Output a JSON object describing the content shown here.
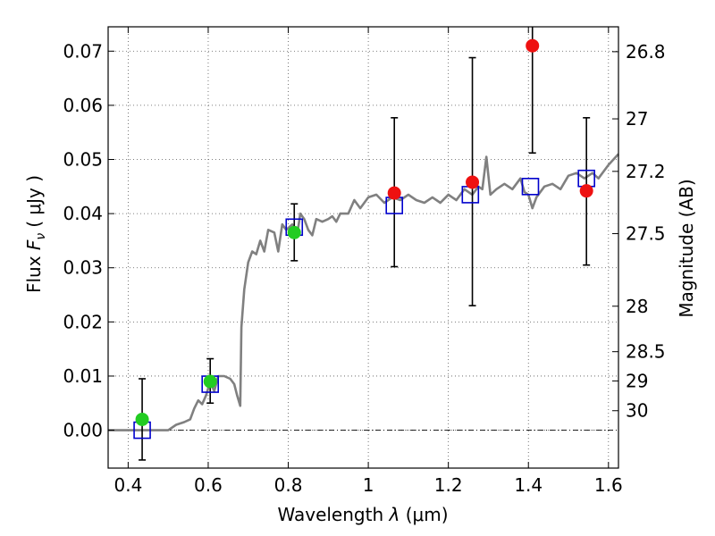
{
  "chart_data": {
    "type": "scatter",
    "title": "",
    "xlabel_parts": {
      "text": "Wavelength",
      "symbol": "λ",
      "unit": "(μm)"
    },
    "ylabel_parts": {
      "text": "Flux",
      "symbol": "F",
      "subscript": "ν",
      "unit": "( μJy )"
    },
    "y2label": "Magnitude (AB)",
    "xlim": [
      0.35,
      1.625
    ],
    "ylim": [
      -0.007,
      0.0745
    ],
    "grid": true,
    "x_ticks": [
      0.4,
      0.6,
      0.8,
      1.0,
      1.2,
      1.4,
      1.6
    ],
    "x_tick_labels": [
      "0.4",
      "0.6",
      "0.8",
      "1",
      "1.2",
      "1.4",
      "1.6"
    ],
    "y_ticks": [
      0.0,
      0.01,
      0.02,
      0.03,
      0.04,
      0.05,
      0.06,
      0.07
    ],
    "y_tick_labels": [
      "0.00",
      "0.01",
      "0.02",
      "0.03",
      "0.04",
      "0.05",
      "0.06",
      "0.07"
    ],
    "mag_ticks": [
      {
        "label": "26.8",
        "flux": 0.0699
      },
      {
        "label": "27",
        "flux": 0.0575
      },
      {
        "label": "27.2",
        "flux": 0.0478
      },
      {
        "label": "27.5",
        "flux": 0.0363
      },
      {
        "label": "28",
        "flux": 0.0229
      },
      {
        "label": "28.5",
        "flux": 0.0145
      },
      {
        "label": "29",
        "flux": 0.0091
      },
      {
        "label": "30",
        "flux": 0.0036
      }
    ],
    "colors": {
      "model": "#808080",
      "model_flux": "#0000cc",
      "detection": "#22cc22",
      "upper_limit": "#ee1111",
      "errorbar": "#000000",
      "zero_line": "#000000",
      "grid": "#555555"
    },
    "series": [
      {
        "name": "SED model",
        "kind": "line",
        "points": [
          [
            0.35,
            0.0
          ],
          [
            0.5,
            0.0
          ],
          [
            0.52,
            0.001
          ],
          [
            0.54,
            0.0015
          ],
          [
            0.555,
            0.002
          ],
          [
            0.565,
            0.004
          ],
          [
            0.575,
            0.0055
          ],
          [
            0.585,
            0.0048
          ],
          [
            0.595,
            0.0065
          ],
          [
            0.605,
            0.009
          ],
          [
            0.615,
            0.0072
          ],
          [
            0.625,
            0.01
          ],
          [
            0.64,
            0.01
          ],
          [
            0.655,
            0.0095
          ],
          [
            0.665,
            0.0085
          ],
          [
            0.672,
            0.0065
          ],
          [
            0.68,
            0.0045
          ],
          [
            0.683,
            0.019
          ],
          [
            0.69,
            0.026
          ],
          [
            0.7,
            0.031
          ],
          [
            0.71,
            0.033
          ],
          [
            0.72,
            0.0325
          ],
          [
            0.73,
            0.035
          ],
          [
            0.74,
            0.033
          ],
          [
            0.75,
            0.037
          ],
          [
            0.765,
            0.0365
          ],
          [
            0.775,
            0.033
          ],
          [
            0.785,
            0.038
          ],
          [
            0.795,
            0.037
          ],
          [
            0.81,
            0.038
          ],
          [
            0.822,
            0.036
          ],
          [
            0.83,
            0.04
          ],
          [
            0.84,
            0.039
          ],
          [
            0.85,
            0.037
          ],
          [
            0.86,
            0.036
          ],
          [
            0.87,
            0.039
          ],
          [
            0.885,
            0.0385
          ],
          [
            0.9,
            0.039
          ],
          [
            0.91,
            0.0395
          ],
          [
            0.92,
            0.0385
          ],
          [
            0.93,
            0.04
          ],
          [
            0.95,
            0.04
          ],
          [
            0.965,
            0.0425
          ],
          [
            0.98,
            0.041
          ],
          [
            1.0,
            0.043
          ],
          [
            1.02,
            0.0435
          ],
          [
            1.04,
            0.042
          ],
          [
            1.06,
            0.043
          ],
          [
            1.08,
            0.0425
          ],
          [
            1.1,
            0.0435
          ],
          [
            1.12,
            0.0425
          ],
          [
            1.14,
            0.042
          ],
          [
            1.16,
            0.043
          ],
          [
            1.18,
            0.042
          ],
          [
            1.2,
            0.0435
          ],
          [
            1.22,
            0.0425
          ],
          [
            1.24,
            0.0445
          ],
          [
            1.26,
            0.0435
          ],
          [
            1.275,
            0.045
          ],
          [
            1.285,
            0.0445
          ],
          [
            1.295,
            0.0505
          ],
          [
            1.305,
            0.0435
          ],
          [
            1.32,
            0.0445
          ],
          [
            1.34,
            0.0455
          ],
          [
            1.36,
            0.0445
          ],
          [
            1.38,
            0.0465
          ],
          [
            1.39,
            0.044
          ],
          [
            1.4,
            0.0435
          ],
          [
            1.41,
            0.041
          ],
          [
            1.42,
            0.043
          ],
          [
            1.44,
            0.045
          ],
          [
            1.46,
            0.0455
          ],
          [
            1.48,
            0.0445
          ],
          [
            1.5,
            0.047
          ],
          [
            1.52,
            0.0475
          ],
          [
            1.54,
            0.0465
          ],
          [
            1.56,
            0.0475
          ],
          [
            1.575,
            0.0465
          ],
          [
            1.6,
            0.049
          ],
          [
            1.625,
            0.051
          ]
        ]
      },
      {
        "name": "Model flux in band",
        "kind": "open-square",
        "points": [
          [
            0.435,
            0.0
          ],
          [
            0.605,
            0.0085
          ],
          [
            0.815,
            0.0375
          ],
          [
            1.065,
            0.0415
          ],
          [
            1.255,
            0.0435
          ],
          [
            1.405,
            0.045
          ],
          [
            1.545,
            0.0465
          ]
        ]
      },
      {
        "name": "Detections",
        "kind": "filled-circle",
        "points": [
          [
            0.435,
            0.002
          ],
          [
            0.605,
            0.009
          ],
          [
            0.815,
            0.0365
          ]
        ],
        "y_errors": [
          [
            -0.0055,
            0.0095
          ],
          [
            0.005,
            0.0132
          ],
          [
            0.0313,
            0.0418
          ]
        ]
      },
      {
        "name": "Non-detections",
        "kind": "filled-circle",
        "points": [
          [
            1.065,
            0.0438
          ],
          [
            1.26,
            0.0458
          ],
          [
            1.41,
            0.071
          ],
          [
            1.545,
            0.0442
          ]
        ],
        "y_errors": [
          [
            0.0302,
            0.0577
          ],
          [
            0.023,
            0.0688
          ],
          [
            0.0512,
            0.0745
          ],
          [
            0.0305,
            0.0577
          ]
        ]
      }
    ]
  }
}
